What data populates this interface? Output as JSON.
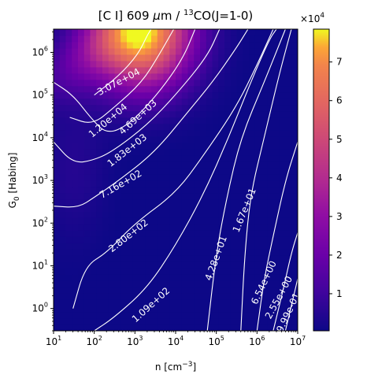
{
  "chart_data": {
    "type": "heatmap",
    "title": "[C I] 609 μm / ¹³CO(J=1-0)",
    "title_parts": {
      "a": "[C I] 609 ",
      "mu": "μ",
      "b": "m / ",
      "sup": "13",
      "c": "CO(J=1-0)"
    },
    "xlabel_parts": {
      "a": "n [cm",
      "sup": "−3",
      "b": "]"
    },
    "ylabel_parts": {
      "a": "G",
      "sub": "0",
      "b": " [Habing]"
    },
    "x_scale": "log",
    "y_scale": "log",
    "xlim": [
      10,
      10000000
    ],
    "ylim": [
      0.3,
      3500000
    ],
    "x_ticks": [
      {
        "value": 10,
        "exp": "1"
      },
      {
        "value": 100,
        "exp": "2"
      },
      {
        "value": 1000,
        "exp": "3"
      },
      {
        "value": 10000,
        "exp": "4"
      },
      {
        "value": 100000,
        "exp": "5"
      },
      {
        "value": 1000000,
        "exp": "6"
      },
      {
        "value": 10000000,
        "exp": "7"
      }
    ],
    "y_ticks": [
      {
        "value": 1,
        "exp": "0"
      },
      {
        "value": 10,
        "exp": "1"
      },
      {
        "value": 100,
        "exp": "2"
      },
      {
        "value": 1000,
        "exp": "3"
      },
      {
        "value": 10000,
        "exp": "4"
      },
      {
        "value": 100000,
        "exp": "5"
      },
      {
        "value": 1000000,
        "exp": "6"
      }
    ],
    "colorbar": {
      "colormap": "plasma",
      "vmin": 400,
      "vmax": 78500,
      "multiplier_base": "×10",
      "multiplier_exp": "4",
      "ticks": [
        {
          "value": 10000,
          "label": "1"
        },
        {
          "value": 20000,
          "label": "2"
        },
        {
          "value": 30000,
          "label": "3"
        },
        {
          "value": 40000,
          "label": "4"
        },
        {
          "value": 50000,
          "label": "5"
        },
        {
          "value": 60000,
          "label": "6"
        },
        {
          "value": 70000,
          "label": "7"
        }
      ]
    },
    "hotspot": {
      "n": 1500,
      "G0": 3000000,
      "value": 78000
    },
    "contour_levels": [
      {
        "label": "3.07e+04",
        "value": 30700,
        "path": [
          [
            100,
            100000
          ],
          [
            400,
            280000
          ],
          [
            1200,
            900000
          ],
          [
            2000,
            2500000
          ],
          [
            2500,
            3500000
          ]
        ],
        "label_at": {
          "n": 400,
          "G0": 200000
        },
        "angle": -28
      },
      {
        "label": "1.20e+04",
        "value": 12000,
        "path": [
          [
            25,
            30000
          ],
          [
            90,
            20000
          ],
          [
            300,
            50000
          ],
          [
            1500,
            200000
          ],
          [
            4000,
            900000
          ],
          [
            9000,
            3500000
          ]
        ],
        "label_at": {
          "n": 220,
          "G0": 25000
        },
        "angle": -40
      },
      {
        "label": "4.69e+03",
        "value": 4690,
        "path": [
          [
            10,
            200000
          ],
          [
            30,
            100000
          ],
          [
            80,
            30000
          ],
          [
            200,
            12000
          ],
          [
            700,
            20000
          ],
          [
            3500,
            100000
          ],
          [
            15000,
            700000
          ],
          [
            30000,
            3500000
          ]
        ],
        "label_at": {
          "n": 1200,
          "G0": 30000
        },
        "angle": -42
      },
      {
        "label": "1.83e+03",
        "value": 1830,
        "path": [
          [
            10,
            8000
          ],
          [
            30,
            2500
          ],
          [
            100,
            3000
          ],
          [
            300,
            5000
          ],
          [
            2000,
            20000
          ],
          [
            10000,
            100000
          ],
          [
            60000,
            800000
          ],
          [
            120000,
            3500000
          ]
        ],
        "label_at": {
          "n": 650,
          "G0": 5000
        },
        "angle": -38
      },
      {
        "label": "7.16e+02",
        "value": 716,
        "path": [
          [
            10,
            250
          ],
          [
            40,
            230
          ],
          [
            100,
            400
          ],
          [
            400,
            1000
          ],
          [
            3000,
            4500
          ],
          [
            20000,
            40000
          ],
          [
            80000,
            200000
          ],
          [
            300000,
            1200000
          ],
          [
            600000,
            3500000
          ]
        ],
        "label_at": {
          "n": 450,
          "G0": 800
        },
        "angle": -30
      },
      {
        "label": "2.80e+02",
        "value": 280,
        "path": [
          [
            30,
            1
          ],
          [
            60,
            10
          ],
          [
            200,
            20
          ],
          [
            1000,
            100
          ],
          [
            10000,
            500
          ],
          [
            50000,
            4000
          ],
          [
            300000,
            50000
          ],
          [
            1000000,
            500000
          ],
          [
            2500000,
            3500000
          ]
        ],
        "label_at": {
          "n": 700,
          "G0": 50
        },
        "angle": -38
      },
      {
        "label": "1.09e+02",
        "value": 109,
        "path": [
          [
            100,
            0.3
          ],
          [
            300,
            0.6
          ],
          [
            2000,
            3
          ],
          [
            10000,
            30
          ],
          [
            50000,
            500
          ],
          [
            200000,
            10000
          ],
          [
            700000,
            200000
          ],
          [
            2000000,
            2000000
          ],
          [
            3000000,
            3500000
          ]
        ],
        "label_at": {
          "n": 2500,
          "G0": 1.2
        },
        "angle": -42
      },
      {
        "label": "4.28e+01",
        "value": 42.8,
        "path": [
          [
            60000,
            0.3
          ],
          [
            100000,
            20
          ],
          [
            180000,
            400
          ],
          [
            400000,
            10000
          ],
          [
            1500000,
            200000
          ],
          [
            3500000,
            1500000
          ],
          [
            5000000,
            3500000
          ]
        ],
        "label_at": {
          "n": 100000,
          "G0": 15
        },
        "angle": -70
      },
      {
        "label": "1.67e+01",
        "value": 16.7,
        "path": [
          [
            400000,
            0.3
          ],
          [
            500000,
            20
          ],
          [
            700000,
            500
          ],
          [
            1500000,
            10000
          ],
          [
            3500000,
            300000
          ],
          [
            7000000,
            3500000
          ]
        ],
        "label_at": {
          "n": 500000,
          "G0": 200
        },
        "angle": -68
      },
      {
        "label": "6.54e+00",
        "value": 6.54,
        "path": [
          [
            1000000,
            0.3
          ],
          [
            1500000,
            5
          ],
          [
            2500000,
            50
          ],
          [
            5000000,
            1000
          ],
          [
            10000000,
            8000
          ]
        ],
        "label_at": {
          "n": 1500000,
          "G0": 4
        },
        "angle": -65
      },
      {
        "label": "2.55e+00",
        "value": 2.55,
        "path": [
          [
            2500000,
            0.3
          ],
          [
            4500000,
            3
          ],
          [
            7000000,
            20
          ],
          [
            10000000,
            60
          ]
        ],
        "label_at": {
          "n": 3500000,
          "G0": 1.8
        },
        "angle": -62
      },
      {
        "label": "9.99e-01",
        "value": 0.999,
        "path": [
          [
            5000000,
            0.3
          ],
          [
            8000000,
            2
          ],
          [
            10000000,
            5
          ]
        ],
        "label_at": {
          "n": 6000000,
          "G0": 0.8
        },
        "angle": -65
      }
    ]
  }
}
